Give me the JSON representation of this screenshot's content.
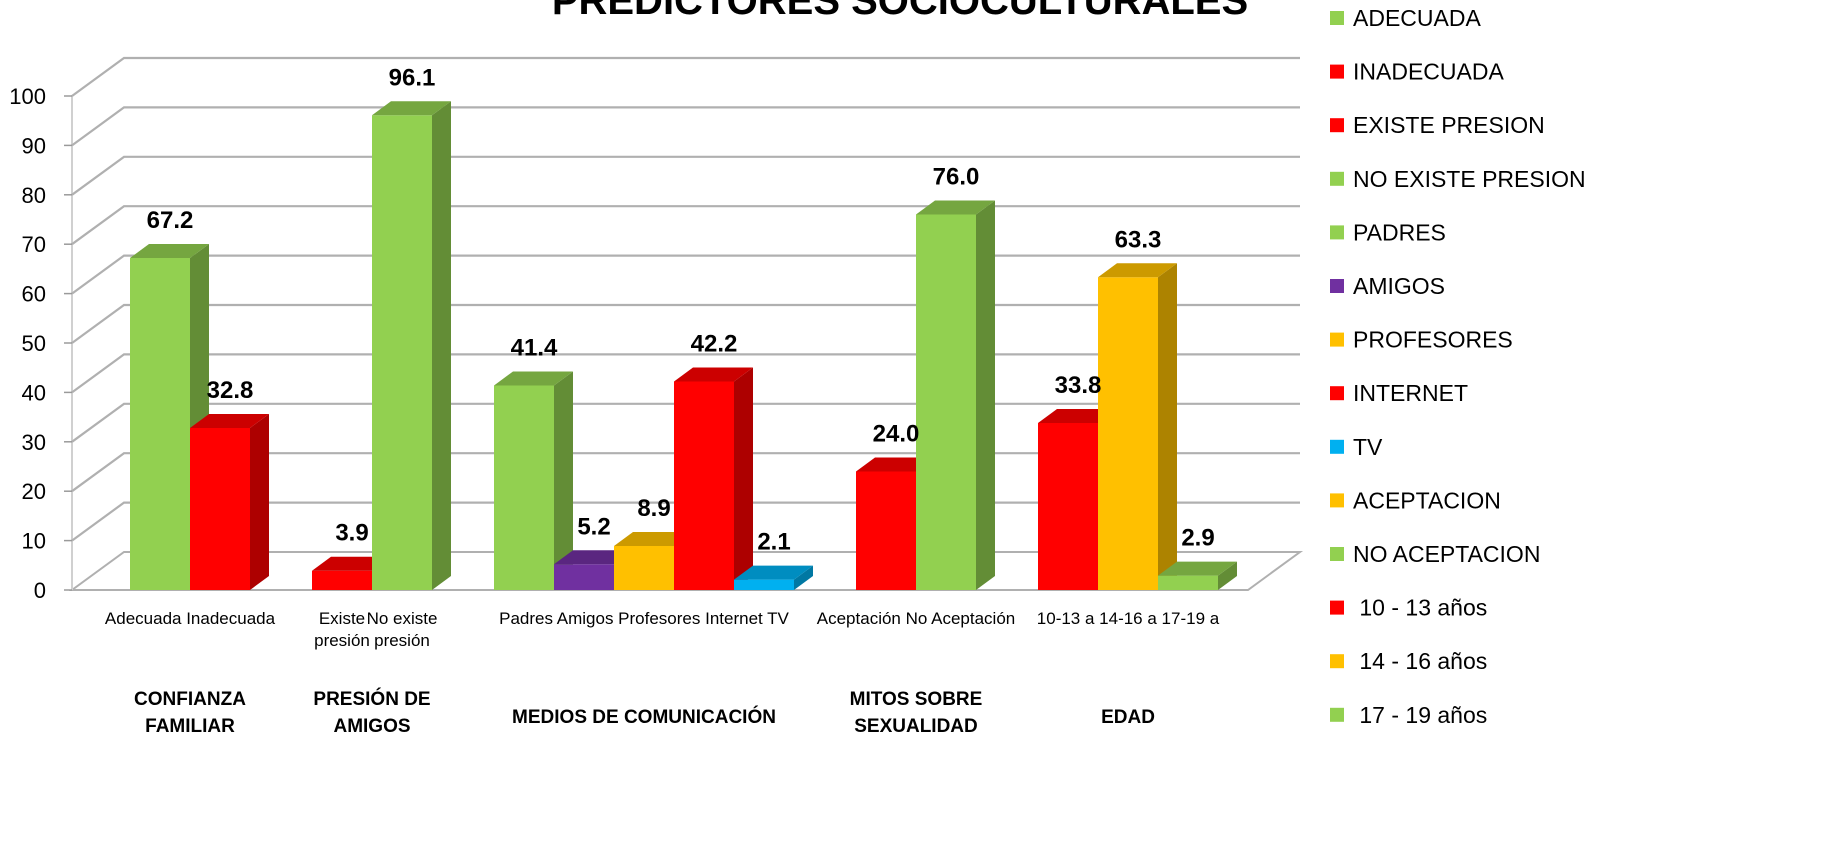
{
  "chart_data": {
    "type": "bar",
    "title": "PREDICTORES SOCIOCULTURALES",
    "ylim": [
      0,
      100
    ],
    "yticks": [
      0,
      10,
      20,
      30,
      40,
      50,
      60,
      70,
      80,
      90,
      100
    ],
    "grid": true,
    "legend_position": "right",
    "legend": [
      {
        "label": "ADECUADA",
        "color": "#92D050"
      },
      {
        "label": "INADECUADA",
        "color": "#FF0000"
      },
      {
        "label": "EXISTE PRESION",
        "color": "#FF0000"
      },
      {
        "label": "NO EXISTE PRESION",
        "color": "#92D050"
      },
      {
        "label": "PADRES",
        "color": "#92D050"
      },
      {
        "label": "AMIGOS",
        "color": "#7030A0"
      },
      {
        "label": "PROFESORES",
        "color": "#FFC000"
      },
      {
        "label": "INTERNET",
        "color": "#FF0000"
      },
      {
        "label": "TV",
        "color": "#00B0F0"
      },
      {
        "label": "ACEPTACION",
        "color": "#FFC000"
      },
      {
        "label": "NO ACEPTACION",
        "color": "#92D050"
      },
      {
        "label": " 10 - 13 años",
        "color": "#FF0000"
      },
      {
        "label": " 14 - 16 años",
        "color": "#FFC000"
      },
      {
        "label": " 17 - 19 años",
        "color": "#92D050"
      }
    ],
    "groups": [
      {
        "label_lines": [
          "CONFIANZA",
          "FAMILIAR"
        ],
        "tick_lines": [
          [
            "Adecuada  Inadecuada"
          ]
        ],
        "bars": [
          {
            "category": "Adecuada",
            "value": 67.2,
            "label": "67.2",
            "color": "#92D050"
          },
          {
            "category": "Inadecuada",
            "value": 32.8,
            "label": "32.8",
            "color": "#FF0000"
          }
        ]
      },
      {
        "label_lines": [
          "PRESIÓN DE",
          "AMIGOS"
        ],
        "tick_lines": [
          [
            "Existe",
            "presión"
          ],
          [
            "No existe",
            "presión"
          ]
        ],
        "bars": [
          {
            "category": "Existe presión",
            "value": 3.9,
            "label": "3.9",
            "color": "#FF0000"
          },
          {
            "category": "No existe presión",
            "value": 96.1,
            "label": "96.1",
            "color": "#92D050"
          }
        ]
      },
      {
        "label_lines": [
          "MEDIOS DE COMUNICACIÓN"
        ],
        "tick_lines": [
          [
            "Padres Amigos Profesores Internet  TV"
          ]
        ],
        "bars": [
          {
            "category": "Padres",
            "value": 41.4,
            "label": "41.4",
            "color": "#92D050"
          },
          {
            "category": "Amigos",
            "value": 5.2,
            "label": "5.2",
            "color": "#7030A0"
          },
          {
            "category": "Profesores",
            "value": 8.9,
            "label": "8.9",
            "color": "#FFC000"
          },
          {
            "category": "Internet",
            "value": 42.2,
            "label": "42.2",
            "color": "#FF0000"
          },
          {
            "category": "TV",
            "value": 2.1,
            "label": "2.1",
            "color": "#00B0F0"
          }
        ]
      },
      {
        "label_lines": [
          "MITOS SOBRE",
          "SEXUALIDAD"
        ],
        "tick_lines": [
          [
            "Aceptación  No Aceptación"
          ]
        ],
        "bars": [
          {
            "category": "Aceptación",
            "value": 24.0,
            "label": "24.0",
            "color": "#FF0000"
          },
          {
            "category": "No Aceptación",
            "value": 76.0,
            "label": "76.0",
            "color": "#92D050"
          }
        ]
      },
      {
        "label_lines": [
          "EDAD"
        ],
        "tick_lines": [
          [
            "10-13 a  14-16 a 17-19 a"
          ]
        ],
        "bars": [
          {
            "category": "10-13 a",
            "value": 33.8,
            "label": "33.8",
            "color": "#FF0000"
          },
          {
            "category": "14-16 a",
            "value": 63.3,
            "label": "63.3",
            "color": "#FFC000"
          },
          {
            "category": "17-19 a",
            "value": 2.9,
            "label": "2.9",
            "color": "#92D050"
          }
        ]
      }
    ]
  }
}
